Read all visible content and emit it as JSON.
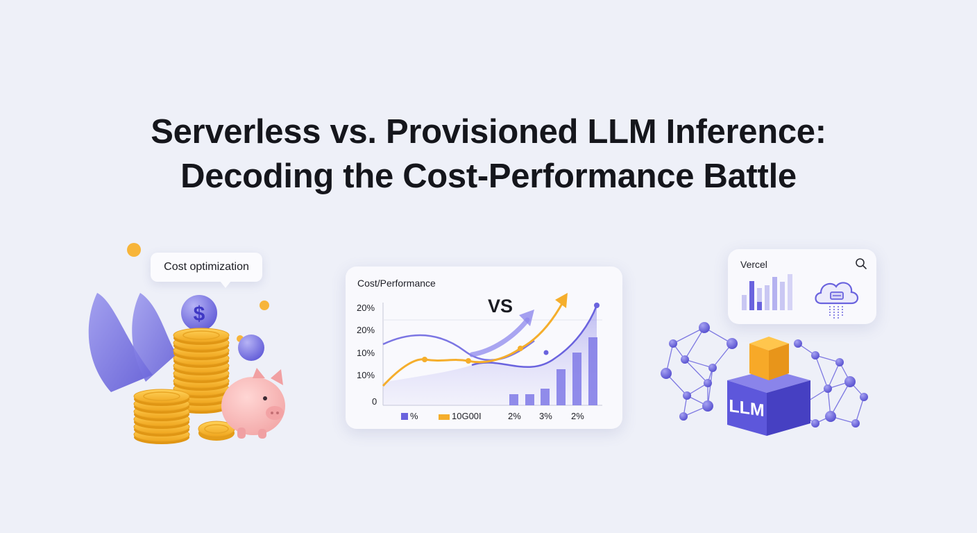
{
  "headline": {
    "line1": "Serverless vs. Provisioned LLM Inference:",
    "line2": "Decoding the Cost-Performance Battle"
  },
  "cost_callout": {
    "label": "Cost optimization",
    "coin_symbol": "$"
  },
  "chart_card": {
    "title": "Cost/Performance",
    "vs_label": "VS",
    "y_ticks": [
      "20%",
      "20%",
      "10%",
      "10%",
      "0"
    ],
    "legend": [
      {
        "label": "%",
        "color": "#6a63de"
      },
      {
        "label": "10G00I",
        "color": "#f5ae2c"
      }
    ],
    "bar_labels": [
      "2%",
      "3%",
      "2%"
    ]
  },
  "vercel_card": {
    "label": "Vercel",
    "icons": [
      "search-icon",
      "bar-chart-icon",
      "cloud-server-icon"
    ]
  },
  "network": {
    "cube_label": "LLM"
  },
  "colors": {
    "accent_purple": "#6a63de",
    "accent_orange": "#f5ae2c",
    "background": "#eef0f8",
    "headline": "#15161c"
  }
}
